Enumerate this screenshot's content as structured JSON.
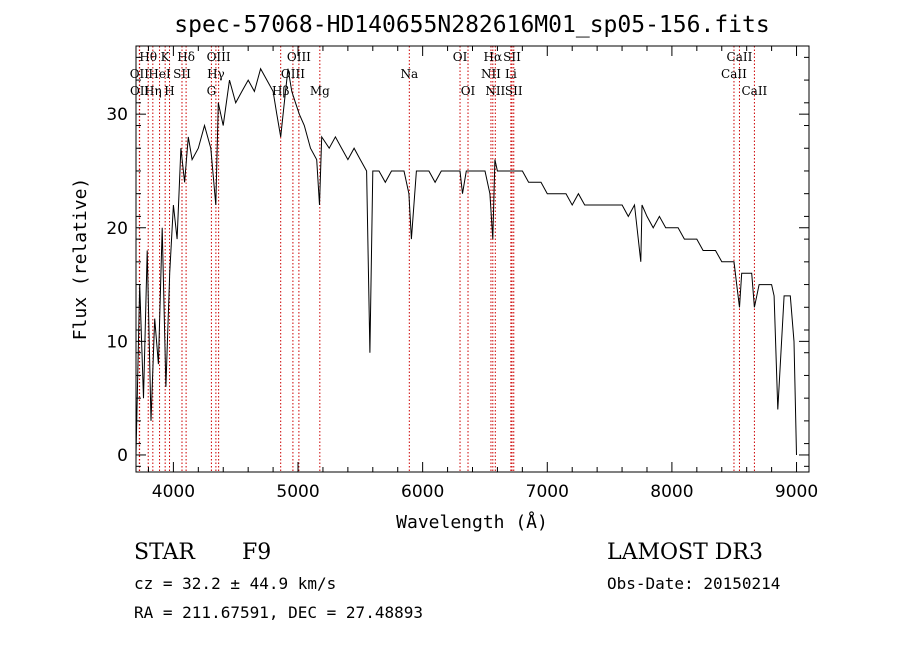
{
  "chart_data": {
    "type": "line",
    "title": "spec-57068-HD140655N282616M01_sp05-156.fits",
    "xlabel": "Wavelength (Å)",
    "ylabel": "Flux (relative)",
    "xlim": [
      3700,
      9100
    ],
    "ylim": [
      -1.5,
      36
    ],
    "xticks": [
      4000,
      5000,
      6000,
      7000,
      8000,
      9000
    ],
    "yticks": [
      0,
      10,
      20,
      30
    ],
    "series": [
      {
        "name": "spectrum",
        "x": [
          3700,
          3730,
          3760,
          3790,
          3820,
          3850,
          3880,
          3910,
          3940,
          3970,
          4000,
          4030,
          4060,
          4090,
          4120,
          4150,
          4200,
          4250,
          4300,
          4340,
          4360,
          4400,
          4450,
          4500,
          4550,
          4600,
          4650,
          4700,
          4750,
          4800,
          4830,
          4861,
          4890,
          4920,
          4950,
          4980,
          5010,
          5050,
          5100,
          5150,
          5172,
          5190,
          5250,
          5300,
          5350,
          5400,
          5450,
          5500,
          5550,
          5577,
          5600,
          5650,
          5700,
          5750,
          5800,
          5850,
          5890,
          5910,
          5950,
          6000,
          6050,
          6100,
          6150,
          6200,
          6250,
          6300,
          6320,
          6350,
          6400,
          6450,
          6500,
          6540,
          6563,
          6580,
          6600,
          6650,
          6700,
          6750,
          6800,
          6850,
          6900,
          6950,
          7000,
          7050,
          7100,
          7150,
          7200,
          7250,
          7300,
          7350,
          7400,
          7450,
          7500,
          7550,
          7600,
          7650,
          7700,
          7750,
          7760,
          7800,
          7850,
          7900,
          7950,
          8000,
          8050,
          8100,
          8150,
          8200,
          8250,
          8300,
          8350,
          8400,
          8450,
          8498,
          8520,
          8542,
          8560,
          8600,
          8640,
          8662,
          8700,
          8750,
          8800,
          8820,
          8850,
          8900,
          8950,
          8980,
          9000
        ],
        "y": [
          0,
          15,
          5,
          18,
          3,
          12,
          8,
          20,
          6,
          16,
          22,
          19,
          27,
          24,
          28,
          26,
          27,
          29,
          27,
          22,
          31,
          29,
          33,
          31,
          32,
          33,
          32,
          34,
          33,
          32,
          30,
          28,
          31,
          34,
          32,
          31,
          30,
          29,
          27,
          26,
          22,
          28,
          27,
          28,
          27,
          26,
          27,
          26,
          25,
          9,
          25,
          25,
          24,
          25,
          25,
          25,
          23,
          19,
          25,
          25,
          25,
          24,
          25,
          25,
          25,
          25,
          23,
          25,
          25,
          25,
          25,
          23,
          19,
          26,
          25,
          25,
          25,
          25,
          25,
          24,
          24,
          24,
          23,
          23,
          23,
          23,
          22,
          23,
          22,
          22,
          22,
          22,
          22,
          22,
          22,
          21,
          22,
          17,
          22,
          21,
          20,
          21,
          20,
          20,
          20,
          19,
          19,
          19,
          18,
          18,
          18,
          17,
          17,
          17,
          15,
          13,
          16,
          16,
          16,
          13,
          15,
          15,
          15,
          14,
          4,
          14,
          14,
          10,
          0
        ]
      }
    ],
    "line_markers": [
      {
        "label": "Hθ",
        "wavelength": 3798,
        "row": 1
      },
      {
        "label": "OII",
        "wavelength": 3727,
        "row": 2
      },
      {
        "label": "OII",
        "wavelength": 3729,
        "row": 3
      },
      {
        "label": "K",
        "wavelength": 3934,
        "row": 1
      },
      {
        "label": "HeI",
        "wavelength": 3889,
        "row": 2
      },
      {
        "label": "Hη",
        "wavelength": 3835,
        "row": 3
      },
      {
        "label": "Hδ",
        "wavelength": 4102,
        "row": 1
      },
      {
        "label": "SII",
        "wavelength": 4069,
        "row": 2
      },
      {
        "label": "H",
        "wavelength": 3969,
        "row": 3
      },
      {
        "label": "OIII",
        "wavelength": 4363,
        "row": 1
      },
      {
        "label": "Hγ",
        "wavelength": 4341,
        "row": 2
      },
      {
        "label": "G",
        "wavelength": 4305,
        "row": 3
      },
      {
        "label": "OIII",
        "wavelength": 5007,
        "row": 1
      },
      {
        "label": "OIII",
        "wavelength": 4959,
        "row": 2
      },
      {
        "label": "Hβ",
        "wavelength": 4861,
        "row": 3
      },
      {
        "label": "Mg",
        "wavelength": 5175,
        "row": 3
      },
      {
        "label": "Na",
        "wavelength": 5893,
        "row": 2
      },
      {
        "label": "OI",
        "wavelength": 6300,
        "row": 1
      },
      {
        "label": "OI",
        "wavelength": 6364,
        "row": 3
      },
      {
        "label": "Hα",
        "wavelength": 6563,
        "row": 1
      },
      {
        "label": "SII",
        "wavelength": 6717,
        "row": 1
      },
      {
        "label": "NII",
        "wavelength": 6548,
        "row": 2
      },
      {
        "label": "Li",
        "wavelength": 6708,
        "row": 2
      },
      {
        "label": "NII",
        "wavelength": 6583,
        "row": 3
      },
      {
        "label": "SII",
        "wavelength": 6731,
        "row": 3
      },
      {
        "label": "CaII",
        "wavelength": 8542,
        "row": 1
      },
      {
        "label": "CaII",
        "wavelength": 8498,
        "row": 2
      },
      {
        "label": "CaII",
        "wavelength": 8662,
        "row": 3
      }
    ]
  },
  "info": {
    "class_label": "STAR",
    "subclass": "F9",
    "survey": "LAMOST DR3",
    "redshift_line": "cz = 32.2 ± 44.9 km/s",
    "obs_date_line": "Obs-Date: 20150214",
    "coords_line": "RA = 211.67591, DEC =  27.48893"
  },
  "colors": {
    "spectrum": "#000000",
    "marker": "#cc0000",
    "axes": "#000000"
  }
}
